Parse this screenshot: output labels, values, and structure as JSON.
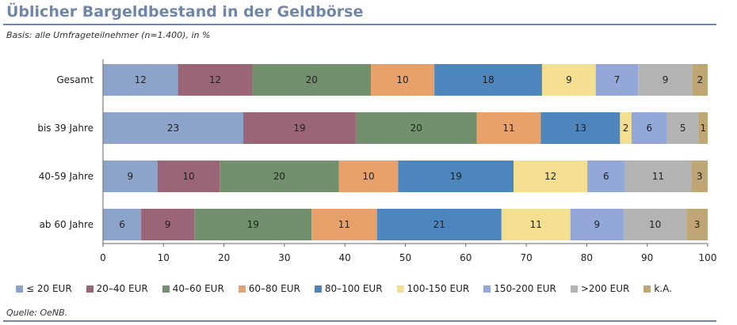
{
  "header": {
    "title": "Üblicher Bargeldbestand in der Geldbörse",
    "subtitle": "Basis: alle Umfrageteilnehmer (n=1.400), in %"
  },
  "footer": {
    "source": "Quelle: OeNB."
  },
  "chart_data": {
    "type": "bar",
    "orientation": "horizontal",
    "stacked": true,
    "categories": [
      "Gesamt",
      "bis 39 Jahre",
      "40-59 Jahre",
      "ab 60 Jahre"
    ],
    "xlim": [
      0,
      100
    ],
    "xticks": [
      "0",
      "10",
      "20",
      "30",
      "40",
      "50",
      "60",
      "70",
      "80",
      "90",
      "100"
    ],
    "grid": false,
    "legend_position": "bottom",
    "series": [
      {
        "name": "≤ 20 EUR",
        "color": "#8ca4c9",
        "values": [
          12.4,
          23.2,
          9.0,
          6.3
        ],
        "labels": [
          "12",
          "23",
          "9",
          "6"
        ]
      },
      {
        "name": "20–40 EUR",
        "color": "#9a6577",
        "values": [
          12.3,
          18.6,
          10.3,
          8.8
        ],
        "labels": [
          "12",
          "19",
          "10",
          "9"
        ]
      },
      {
        "name": "40–60 EUR",
        "color": "#73906e",
        "values": [
          19.6,
          20.0,
          19.7,
          19.4
        ],
        "labels": [
          "20",
          "20",
          "20",
          "19"
        ]
      },
      {
        "name": "60–80 EUR",
        "color": "#e8a16a",
        "values": [
          10.5,
          10.6,
          9.8,
          10.8
        ],
        "labels": [
          "10",
          "11",
          "10",
          "11"
        ]
      },
      {
        "name": "80–100 EUR",
        "color": "#4d86bd",
        "values": [
          17.8,
          13.1,
          19.1,
          20.6
        ],
        "labels": [
          "18",
          "13",
          "19",
          "21"
        ]
      },
      {
        "name": "100-150 EUR",
        "color": "#f3df8f",
        "values": [
          8.9,
          1.9,
          12.2,
          11.4
        ],
        "labels": [
          "9",
          "2",
          "12",
          "11"
        ]
      },
      {
        "name": "150-200 EUR",
        "color": "#93a8d8",
        "values": [
          7.0,
          5.9,
          6.2,
          8.8
        ],
        "labels": [
          "7",
          "6",
          "6",
          "9"
        ]
      },
      {
        "name": ">200 EUR",
        "color": "#b3b3b3",
        "values": [
          9.0,
          5.2,
          11.0,
          10.4
        ],
        "labels": [
          "9",
          "5",
          "11",
          "10"
        ]
      },
      {
        "name": "k.A.",
        "color": "#bfa675",
        "values": [
          2.5,
          1.5,
          2.7,
          3.5
        ],
        "labels": [
          "2",
          "1",
          "3",
          "3"
        ]
      }
    ]
  }
}
